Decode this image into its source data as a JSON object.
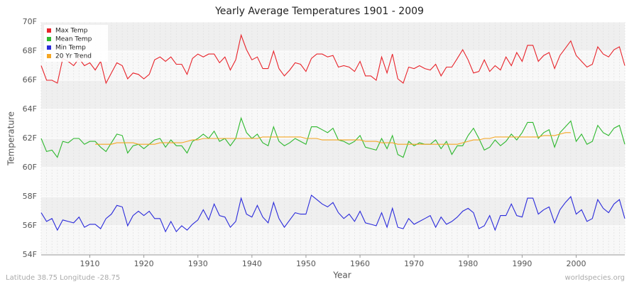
{
  "chart_data": {
    "type": "line",
    "title": "Yearly Average Temperatures 1901 - 2009",
    "x_label": "Year",
    "y_label": "Temperature",
    "footer_left": "Latitude 38.75 Longitude -28.75",
    "footer_right": "worldspecies.org",
    "x": [
      1901,
      1902,
      1903,
      1904,
      1905,
      1906,
      1907,
      1908,
      1909,
      1910,
      1911,
      1912,
      1913,
      1914,
      1915,
      1916,
      1917,
      1918,
      1919,
      1920,
      1921,
      1922,
      1923,
      1924,
      1925,
      1926,
      1927,
      1928,
      1929,
      1930,
      1931,
      1932,
      1933,
      1934,
      1935,
      1936,
      1937,
      1938,
      1939,
      1940,
      1941,
      1942,
      1943,
      1944,
      1945,
      1946,
      1947,
      1948,
      1949,
      1950,
      1951,
      1952,
      1953,
      1954,
      1955,
      1956,
      1957,
      1958,
      1959,
      1960,
      1961,
      1962,
      1963,
      1964,
      1965,
      1966,
      1967,
      1968,
      1969,
      1970,
      1971,
      1972,
      1973,
      1974,
      1975,
      1976,
      1977,
      1978,
      1979,
      1980,
      1981,
      1982,
      1983,
      1984,
      1985,
      1986,
      1987,
      1988,
      1989,
      1990,
      1991,
      1992,
      1993,
      1994,
      1995,
      1996,
      1997,
      1998,
      1999,
      2000,
      2001,
      2002,
      2003,
      2004,
      2005,
      2006,
      2007,
      2008,
      2009
    ],
    "series": [
      {
        "name": "Max Temp",
        "color": "#e8232a",
        "values": [
          67.0,
          66.0,
          66.0,
          65.8,
          67.5,
          67.3,
          67.0,
          67.5,
          67.0,
          67.2,
          66.7,
          67.3,
          65.8,
          66.5,
          67.2,
          67.0,
          66.1,
          66.5,
          66.4,
          66.1,
          66.4,
          67.4,
          67.6,
          67.3,
          67.6,
          67.1,
          67.1,
          66.4,
          67.5,
          67.8,
          67.6,
          67.8,
          67.8,
          67.2,
          67.6,
          66.7,
          67.4,
          69.1,
          68.1,
          67.4,
          67.6,
          66.8,
          66.8,
          68.0,
          66.8,
          66.3,
          66.7,
          67.2,
          67.1,
          66.6,
          67.5,
          67.8,
          67.8,
          67.6,
          67.7,
          66.9,
          67.0,
          66.9,
          66.6,
          67.3,
          66.3,
          66.3,
          66.0,
          67.6,
          66.5,
          67.8,
          66.1,
          65.8,
          66.9,
          66.8,
          67.0,
          66.8,
          66.7,
          67.1,
          66.3,
          66.9,
          66.9,
          67.5,
          68.1,
          67.4,
          66.5,
          66.6,
          67.4,
          66.6,
          67.0,
          66.7,
          67.6,
          67.0,
          67.9,
          67.3,
          68.4,
          68.4,
          67.3,
          67.7,
          67.9,
          66.8,
          67.7,
          68.2,
          68.7,
          67.7,
          67.3,
          66.9,
          67.1,
          68.3,
          67.8,
          67.6,
          68.1,
          68.3,
          67.0
        ]
      },
      {
        "name": "Mean Temp",
        "color": "#2db82d",
        "values": [
          62.0,
          61.1,
          61.2,
          60.7,
          61.8,
          61.7,
          62.0,
          62.0,
          61.6,
          61.8,
          61.8,
          61.4,
          61.1,
          61.7,
          62.3,
          62.2,
          61.0,
          61.5,
          61.6,
          61.3,
          61.6,
          61.9,
          62.0,
          61.4,
          61.9,
          61.5,
          61.5,
          61.0,
          61.8,
          62.0,
          62.3,
          62.0,
          62.5,
          61.8,
          62.0,
          61.5,
          62.0,
          63.4,
          62.4,
          62.0,
          62.3,
          61.7,
          61.5,
          62.8,
          61.8,
          61.5,
          61.7,
          62.0,
          61.8,
          61.6,
          62.8,
          62.8,
          62.6,
          62.4,
          62.7,
          61.9,
          61.8,
          61.6,
          61.8,
          62.2,
          61.4,
          61.3,
          61.2,
          62.0,
          61.3,
          62.2,
          60.9,
          60.7,
          61.8,
          61.5,
          61.7,
          61.6,
          61.6,
          61.9,
          61.3,
          61.8,
          60.9,
          61.5,
          61.5,
          62.2,
          62.7,
          62.0,
          61.2,
          61.4,
          61.9,
          61.5,
          61.8,
          62.3,
          61.9,
          62.4,
          63.1,
          63.1,
          62.0,
          62.4,
          62.6,
          61.4,
          62.4,
          62.8,
          63.2,
          61.8,
          62.3,
          61.6,
          61.8,
          62.9,
          62.4,
          62.2,
          62.7,
          62.9,
          61.6
        ]
      },
      {
        "name": "Min Temp",
        "color": "#2a2adb",
        "values": [
          56.9,
          56.3,
          56.5,
          55.7,
          56.4,
          56.3,
          56.2,
          56.6,
          55.9,
          56.1,
          56.1,
          55.8,
          56.5,
          56.8,
          57.4,
          57.3,
          56.0,
          56.7,
          57.0,
          56.7,
          57.0,
          56.5,
          56.5,
          55.6,
          56.3,
          55.6,
          56.0,
          55.7,
          56.1,
          56.4,
          57.1,
          56.4,
          57.5,
          56.7,
          56.6,
          55.9,
          56.3,
          57.9,
          56.8,
          56.6,
          57.4,
          56.6,
          56.2,
          57.6,
          56.5,
          55.9,
          56.4,
          56.9,
          56.8,
          56.8,
          58.1,
          57.8,
          57.5,
          57.3,
          57.6,
          56.9,
          56.5,
          56.8,
          56.3,
          57.0,
          56.2,
          56.1,
          56.0,
          56.9,
          55.9,
          57.2,
          55.9,
          55.8,
          56.5,
          56.1,
          56.3,
          56.5,
          56.7,
          55.9,
          56.6,
          56.1,
          56.3,
          56.6,
          57.0,
          57.2,
          56.9,
          55.8,
          56.0,
          56.7,
          55.7,
          56.7,
          56.7,
          57.5,
          56.7,
          56.6,
          57.9,
          57.9,
          56.8,
          57.1,
          57.3,
          56.2,
          57.1,
          57.6,
          58.0,
          56.8,
          57.1,
          56.3,
          56.5,
          57.8,
          57.2,
          56.9,
          57.5,
          57.8,
          56.5
        ]
      },
      {
        "name": "20 Yr Trend",
        "color": "#f5a623",
        "values": [
          null,
          null,
          null,
          null,
          null,
          null,
          null,
          null,
          null,
          null,
          61.6,
          61.6,
          61.6,
          61.6,
          61.7,
          61.7,
          61.7,
          61.7,
          61.6,
          61.6,
          61.6,
          61.6,
          61.7,
          61.7,
          61.7,
          61.7,
          61.7,
          61.8,
          61.9,
          61.9,
          62.0,
          62.0,
          62.0,
          62.0,
          62.0,
          62.0,
          62.0,
          62.0,
          62.0,
          62.0,
          62.0,
          62.1,
          62.1,
          62.1,
          62.1,
          62.1,
          62.1,
          62.1,
          62.1,
          62.0,
          62.0,
          62.0,
          61.9,
          61.9,
          61.9,
          61.9,
          61.9,
          61.9,
          61.9,
          61.9,
          61.8,
          61.8,
          61.8,
          61.7,
          61.7,
          61.7,
          61.6,
          61.6,
          61.6,
          61.6,
          61.6,
          61.6,
          61.6,
          61.6,
          61.6,
          61.6,
          61.6,
          61.6,
          61.7,
          61.8,
          61.9,
          61.9,
          62.0,
          62.0,
          62.1,
          62.1,
          62.1,
          62.1,
          62.1,
          62.1,
          62.1,
          62.1,
          62.1,
          62.2,
          62.2,
          62.2,
          62.3,
          62.4,
          62.4,
          null,
          null,
          null,
          null,
          null,
          null,
          null,
          null,
          null,
          null
        ]
      }
    ],
    "xlim": [
      1901,
      2009
    ],
    "xticks": [
      1910,
      1920,
      1930,
      1940,
      1950,
      1960,
      1970,
      1980,
      1990,
      2000
    ],
    "ylim": [
      54,
      70
    ],
    "yticks": [
      {
        "value": 54,
        "label": "54F"
      },
      {
        "value": 56,
        "label": "56F"
      },
      {
        "value": 58,
        "label": "58F"
      },
      {
        "value": 60,
        "label": "60F"
      },
      {
        "value": 62,
        "label": "62F"
      },
      {
        "value": 64,
        "label": "64F"
      },
      {
        "value": 66,
        "label": "66F"
      },
      {
        "value": 68,
        "label": "68F"
      },
      {
        "value": 70,
        "label": "70F"
      }
    ],
    "grid": true,
    "legend": "top-left"
  }
}
